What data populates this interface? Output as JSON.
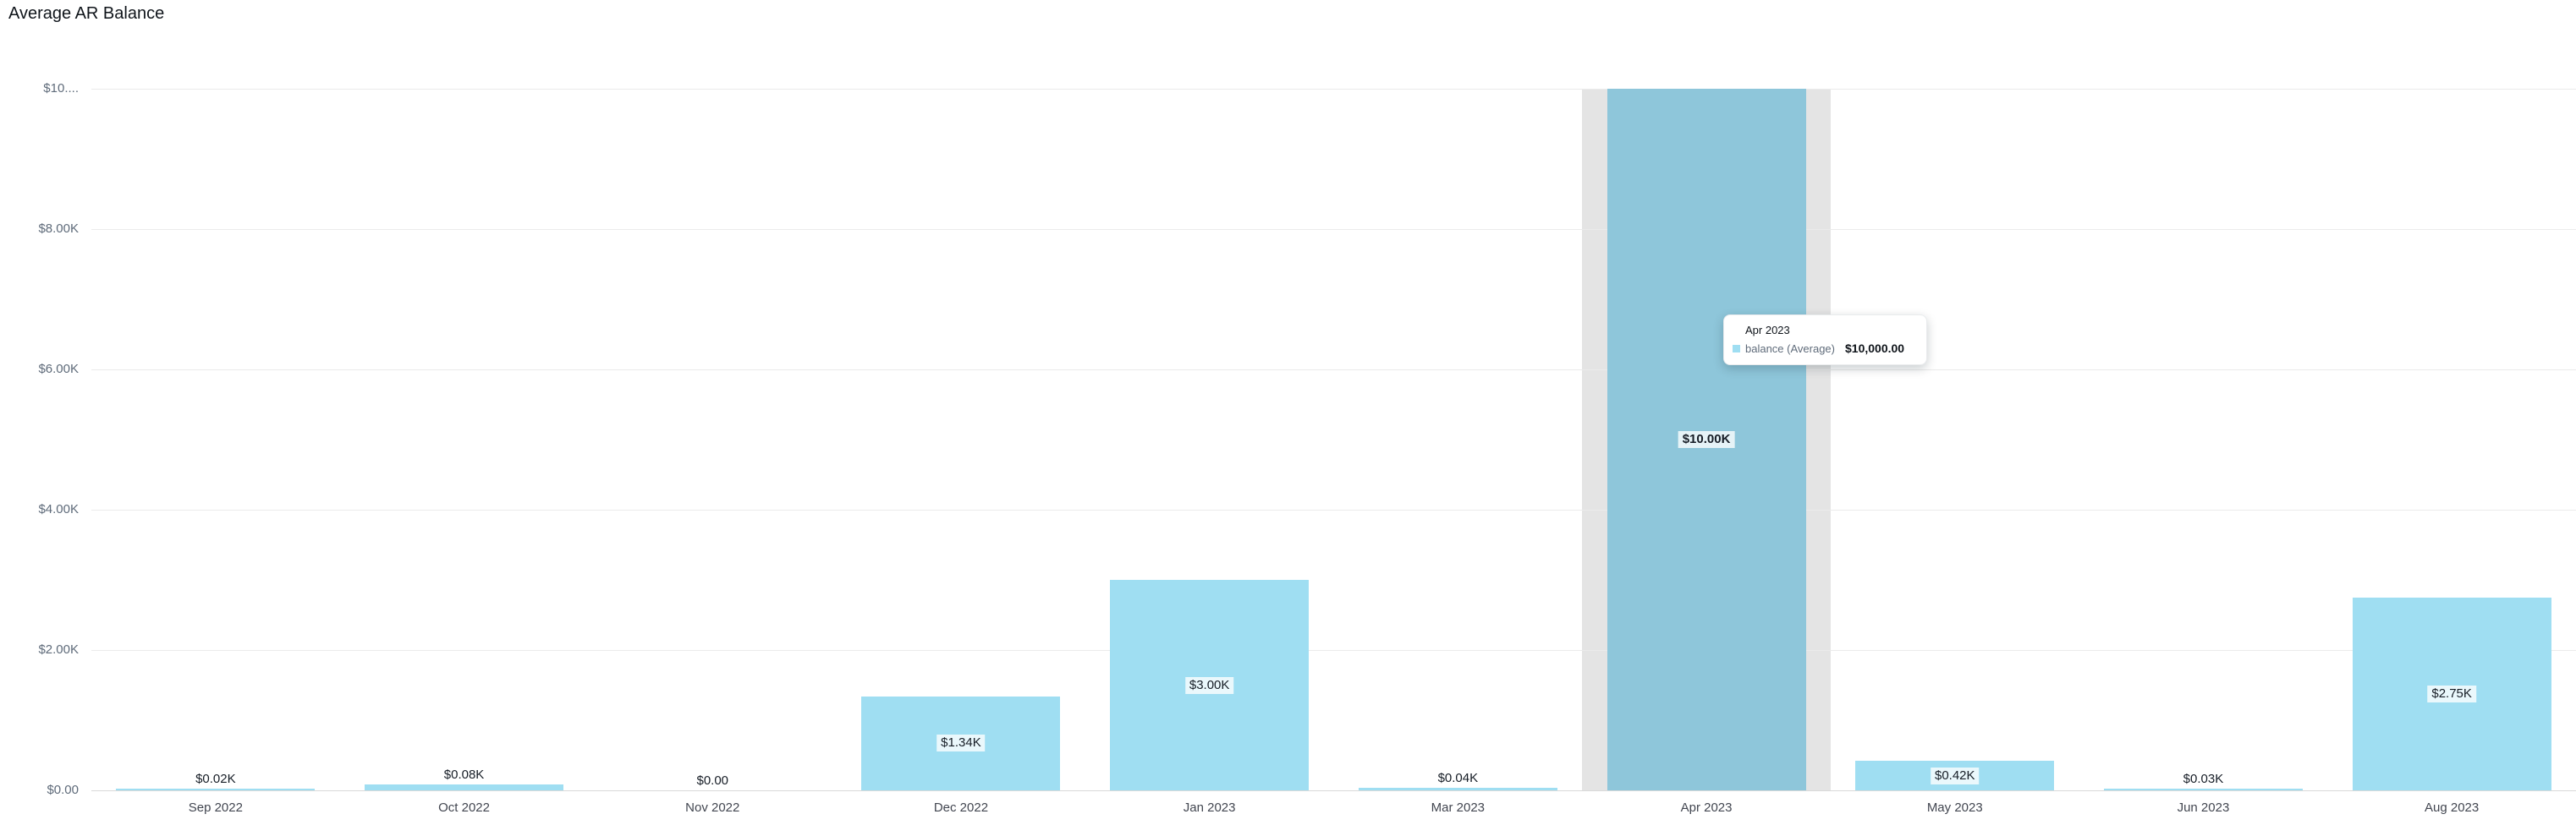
{
  "chart_data": {
    "type": "bar",
    "title": "Average AR Balance",
    "xlabel": "",
    "ylabel": "",
    "ylim": [
      0,
      10000
    ],
    "grid": "horizontal",
    "legend_position": "none",
    "categories": [
      "Sep 2022",
      "Oct 2022",
      "Nov 2022",
      "Dec 2022",
      "Jan 2023",
      "Mar 2023",
      "Apr 2023",
      "May 2023",
      "Jun 2023",
      "Aug 2023"
    ],
    "series": [
      {
        "name": "balance (Average)",
        "values": [
          20,
          80,
          0,
          1340,
          3000,
          40,
          10000,
          420,
          30,
          2750
        ]
      }
    ],
    "value_labels": [
      "$0.02K",
      "$0.08K",
      "$0.00",
      "$1.34K",
      "$3.00K",
      "$0.04K",
      "$10.00K",
      "$0.42K",
      "$0.03K",
      "$2.75K"
    ],
    "y_ticks": [
      {
        "label": "$0.00",
        "value": 0
      },
      {
        "label": "$2.00K",
        "value": 2000
      },
      {
        "label": "$4.00K",
        "value": 4000
      },
      {
        "label": "$6.00K",
        "value": 6000
      },
      {
        "label": "$8.00K",
        "value": 8000
      },
      {
        "label": "$10....",
        "value": 10000
      }
    ],
    "hovered_category": "Apr 2023"
  },
  "tooltip": {
    "title": "Apr 2023",
    "series": "balance (Average)",
    "value": "$10,000.00"
  },
  "colors": {
    "bar": "#9FDEF2",
    "bar_hovered": "#8EC6DA",
    "hover_band": "#E4E4E4",
    "gridline": "#EBEBEB",
    "baseline": "#D9D9D9",
    "title_text": "#0F141A",
    "y_axis_text": "#5F6B7A",
    "x_axis_text": "#424650",
    "value_label_text": "#161D26",
    "tooltip_series_text": "#5F6B7A",
    "tooltip_value_text": "#0F141A"
  }
}
